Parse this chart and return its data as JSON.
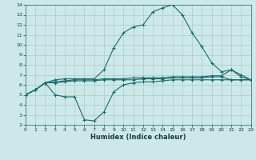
{
  "xlabel": "Humidex (Indice chaleur)",
  "bg_color": "#cce8e8",
  "grid_color": "#aacccc",
  "line_color": "#1a6b6b",
  "xlim": [
    0,
    23
  ],
  "ylim": [
    2,
    14
  ],
  "xticks": [
    0,
    1,
    2,
    3,
    4,
    5,
    6,
    7,
    8,
    9,
    10,
    11,
    12,
    13,
    14,
    15,
    16,
    17,
    18,
    19,
    20,
    21,
    22,
    23
  ],
  "yticks": [
    2,
    3,
    4,
    5,
    6,
    7,
    8,
    9,
    10,
    11,
    12,
    13,
    14
  ],
  "curve_main": [
    [
      0,
      5.0
    ],
    [
      1,
      5.5
    ],
    [
      2,
      6.2
    ],
    [
      3,
      6.5
    ],
    [
      4,
      6.6
    ],
    [
      5,
      6.6
    ],
    [
      6,
      6.6
    ],
    [
      7,
      6.6
    ],
    [
      8,
      7.5
    ],
    [
      9,
      9.7
    ],
    [
      10,
      11.2
    ],
    [
      11,
      11.8
    ],
    [
      12,
      12.0
    ],
    [
      13,
      13.3
    ],
    [
      14,
      13.7
    ],
    [
      15,
      14.0
    ],
    [
      16,
      13.0
    ],
    [
      17,
      11.2
    ],
    [
      18,
      9.8
    ],
    [
      19,
      8.2
    ],
    [
      20,
      7.3
    ],
    [
      21,
      7.5
    ],
    [
      22,
      7.0
    ],
    [
      23,
      6.5
    ]
  ],
  "curve_min": [
    [
      0,
      5.0
    ],
    [
      1,
      5.5
    ],
    [
      2,
      6.2
    ],
    [
      3,
      5.0
    ],
    [
      4,
      4.8
    ],
    [
      5,
      4.8
    ],
    [
      6,
      2.5
    ],
    [
      7,
      2.4
    ],
    [
      8,
      3.3
    ],
    [
      9,
      5.3
    ],
    [
      10,
      6.0
    ],
    [
      11,
      6.2
    ],
    [
      12,
      6.3
    ],
    [
      13,
      6.3
    ],
    [
      14,
      6.4
    ],
    [
      15,
      6.5
    ],
    [
      16,
      6.5
    ],
    [
      17,
      6.5
    ],
    [
      18,
      6.5
    ],
    [
      19,
      6.5
    ],
    [
      20,
      6.5
    ],
    [
      21,
      6.5
    ],
    [
      22,
      6.5
    ],
    [
      23,
      6.5
    ]
  ],
  "curve_avg1": [
    [
      0,
      5.0
    ],
    [
      1,
      5.5
    ],
    [
      2,
      6.2
    ],
    [
      3,
      6.3
    ],
    [
      4,
      6.4
    ],
    [
      5,
      6.5
    ],
    [
      6,
      6.5
    ],
    [
      7,
      6.5
    ],
    [
      8,
      6.6
    ],
    [
      9,
      6.6
    ],
    [
      10,
      6.6
    ],
    [
      11,
      6.7
    ],
    [
      12,
      6.7
    ],
    [
      13,
      6.7
    ],
    [
      14,
      6.7
    ],
    [
      15,
      6.8
    ],
    [
      16,
      6.8
    ],
    [
      17,
      6.8
    ],
    [
      18,
      6.8
    ],
    [
      19,
      6.9
    ],
    [
      20,
      6.9
    ],
    [
      21,
      7.5
    ],
    [
      22,
      6.8
    ],
    [
      23,
      6.5
    ]
  ],
  "curve_avg2": [
    [
      0,
      5.0
    ],
    [
      1,
      5.5
    ],
    [
      2,
      6.2
    ],
    [
      3,
      6.2
    ],
    [
      4,
      6.3
    ],
    [
      5,
      6.4
    ],
    [
      6,
      6.4
    ],
    [
      7,
      6.4
    ],
    [
      8,
      6.5
    ],
    [
      9,
      6.5
    ],
    [
      10,
      6.5
    ],
    [
      11,
      6.5
    ],
    [
      12,
      6.6
    ],
    [
      13,
      6.6
    ],
    [
      14,
      6.6
    ],
    [
      15,
      6.7
    ],
    [
      16,
      6.7
    ],
    [
      17,
      6.7
    ],
    [
      18,
      6.7
    ],
    [
      19,
      6.8
    ],
    [
      20,
      6.8
    ],
    [
      21,
      6.5
    ],
    [
      22,
      6.5
    ],
    [
      23,
      6.5
    ]
  ]
}
